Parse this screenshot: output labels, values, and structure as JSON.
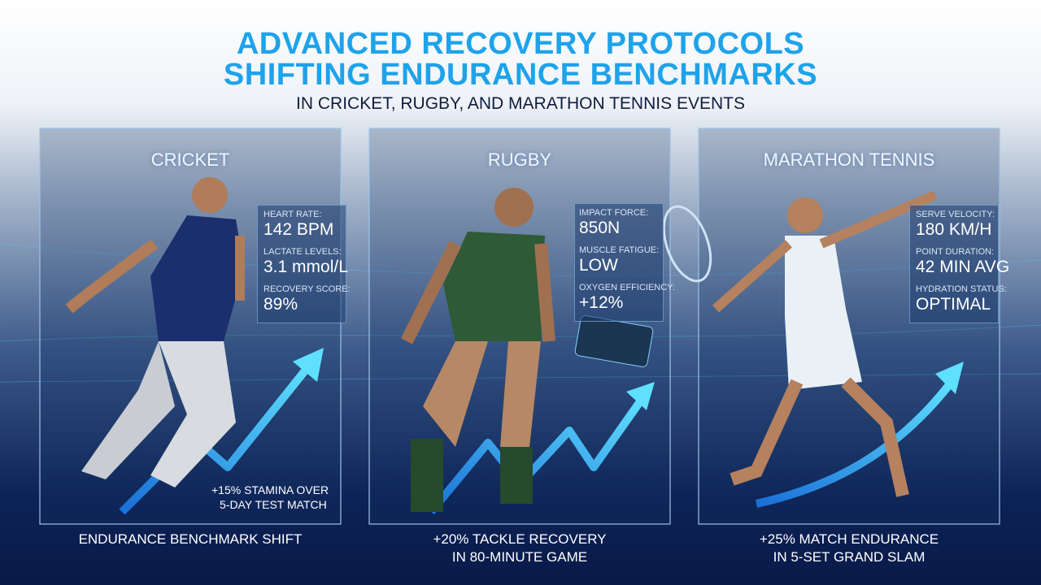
{
  "header": {
    "title": [
      "ADVANCED RECOVERY PROTOCOLS",
      "SHIFTING ENDURANCE BENCHMARKS"
    ],
    "subtitle": "IN CRICKET, RUGBY, AND MARATHON TENNIS EVENTS"
  },
  "panels": [
    {
      "sport": "CRICKET",
      "metrics": [
        {
          "label": "HEART RATE:",
          "value": "142 BPM"
        },
        {
          "label": "LACTATE LEVELS:",
          "value": "3.1 mmol/L"
        },
        {
          "label": "RECOVERY SCORE:",
          "value": "89%"
        }
      ],
      "callout": [
        "+15% STAMINA OVER",
        "5-DAY TEST MATCH"
      ],
      "caption": [
        "ENDURANCE BENCHMARK SHIFT"
      ]
    },
    {
      "sport": "RUGBY",
      "metrics": [
        {
          "label": "IMPACT FORCE:",
          "value": "850N"
        },
        {
          "label": "MUSCLE FATIGUE:",
          "value": "LOW"
        },
        {
          "label": "OXYGEN EFFICIENCY:",
          "value": "+12%"
        }
      ],
      "caption": [
        "+20% TACKLE RECOVERY",
        "IN 80-MINUTE GAME"
      ]
    },
    {
      "sport": "MARATHON TENNIS",
      "metrics": [
        {
          "label": "SERVE VELOCITY:",
          "value": "180 KM/H"
        },
        {
          "label": "POINT DURATION:",
          "value": "42 MIN AVG"
        },
        {
          "label": "HYDRATION STATUS:",
          "value": "OPTIMAL"
        }
      ],
      "caption": [
        "+25% MATCH ENDURANCE",
        "IN 5-SET GRAND SLAM"
      ]
    }
  ]
}
